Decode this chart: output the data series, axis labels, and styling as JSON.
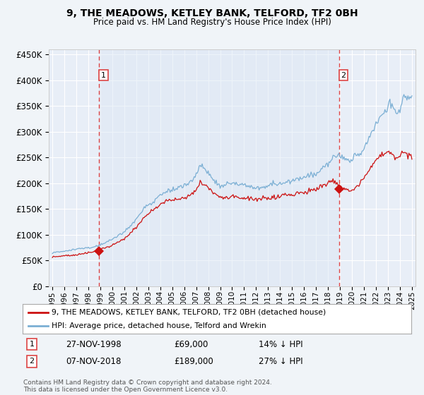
{
  "title": "9, THE MEADOWS, KETLEY BANK, TELFORD, TF2 0BH",
  "subtitle": "Price paid vs. HM Land Registry's House Price Index (HPI)",
  "bg_color": "#f0f4f8",
  "plot_bg_color": "#e8eef7",
  "grid_color": "#ffffff",
  "sale1_date_num": 1998.9,
  "sale1_price": 69000,
  "sale2_date_num": 2018.92,
  "sale2_price": 189000,
  "ylim": [
    0,
    460000
  ],
  "xlim": [
    1994.7,
    2025.3
  ],
  "ylabel_ticks": [
    0,
    50000,
    100000,
    150000,
    200000,
    250000,
    300000,
    350000,
    400000,
    450000
  ],
  "hpi_color": "#7bafd4",
  "price_color": "#cc1111",
  "dashed_line_color": "#dd4444",
  "legend_label_price": "9, THE MEADOWS, KETLEY BANK, TELFORD, TF2 0BH (detached house)",
  "legend_label_hpi": "HPI: Average price, detached house, Telford and Wrekin",
  "annotation1_label": "1",
  "annotation1_date": "27-NOV-1998",
  "annotation1_price": "£69,000",
  "annotation1_hpi": "14% ↓ HPI",
  "annotation2_label": "2",
  "annotation2_date": "07-NOV-2018",
  "annotation2_price": "£189,000",
  "annotation2_hpi": "27% ↓ HPI",
  "footer": "Contains HM Land Registry data © Crown copyright and database right 2024.\nThis data is licensed under the Open Government Licence v3.0."
}
